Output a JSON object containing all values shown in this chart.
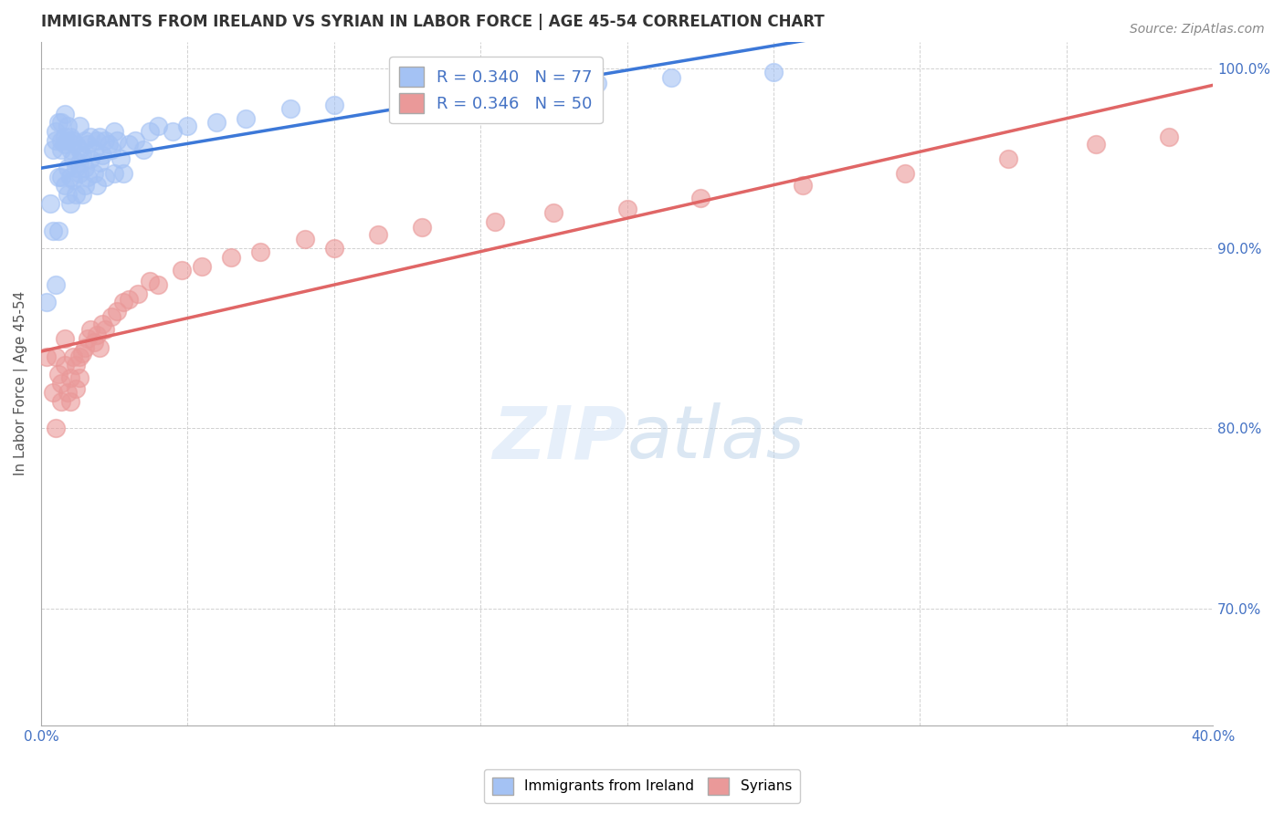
{
  "title": "IMMIGRANTS FROM IRELAND VS SYRIAN IN LABOR FORCE | AGE 45-54 CORRELATION CHART",
  "source": "Source: ZipAtlas.com",
  "xlabel": "",
  "ylabel": "In Labor Force | Age 45-54",
  "xlim": [
    0.0,
    0.4
  ],
  "ylim": [
    0.635,
    1.015
  ],
  "xtick_positions": [
    0.0,
    0.05,
    0.1,
    0.15,
    0.2,
    0.25,
    0.3,
    0.35,
    0.4
  ],
  "xticklabels": [
    "0.0%",
    "",
    "",
    "",
    "",
    "",
    "",
    "",
    "40.0%"
  ],
  "ytick_values": [
    0.7,
    0.8,
    0.9,
    1.0
  ],
  "ytick_labels": [
    "70.0%",
    "80.0%",
    "90.0%",
    "100.0%"
  ],
  "ireland_color": "#a4c2f4",
  "syrian_color": "#ea9999",
  "ireland_line_color": "#3c78d8",
  "syrian_line_color": "#e06666",
  "R_ireland": 0.34,
  "N_ireland": 77,
  "R_syrian": 0.346,
  "N_syrian": 50,
  "legend_label_ireland": "Immigrants from Ireland",
  "legend_label_syrian": "Syrians",
  "title_fontsize": 12,
  "axis_label_fontsize": 11,
  "tick_fontsize": 11,
  "legend_fontsize": 13,
  "ireland_points_x": [
    0.002,
    0.003,
    0.004,
    0.004,
    0.005,
    0.005,
    0.005,
    0.006,
    0.006,
    0.006,
    0.007,
    0.007,
    0.007,
    0.007,
    0.008,
    0.008,
    0.008,
    0.008,
    0.009,
    0.009,
    0.009,
    0.009,
    0.01,
    0.01,
    0.01,
    0.01,
    0.011,
    0.011,
    0.011,
    0.012,
    0.012,
    0.012,
    0.013,
    0.013,
    0.013,
    0.013,
    0.014,
    0.014,
    0.015,
    0.015,
    0.015,
    0.016,
    0.016,
    0.017,
    0.017,
    0.018,
    0.018,
    0.019,
    0.019,
    0.02,
    0.02,
    0.021,
    0.022,
    0.022,
    0.023,
    0.024,
    0.025,
    0.025,
    0.026,
    0.027,
    0.028,
    0.03,
    0.032,
    0.035,
    0.037,
    0.04,
    0.045,
    0.05,
    0.06,
    0.07,
    0.085,
    0.1,
    0.125,
    0.155,
    0.19,
    0.215,
    0.25
  ],
  "ireland_points_y": [
    0.87,
    0.925,
    0.955,
    0.91,
    0.965,
    0.96,
    0.88,
    0.94,
    0.91,
    0.97,
    0.96,
    0.955,
    0.94,
    0.97,
    0.958,
    0.962,
    0.935,
    0.975,
    0.96,
    0.945,
    0.93,
    0.968,
    0.955,
    0.94,
    0.962,
    0.925,
    0.95,
    0.938,
    0.96,
    0.945,
    0.958,
    0.93,
    0.948,
    0.955,
    0.942,
    0.968,
    0.952,
    0.93,
    0.945,
    0.96,
    0.935,
    0.958,
    0.94,
    0.95,
    0.962,
    0.955,
    0.942,
    0.96,
    0.935,
    0.962,
    0.948,
    0.952,
    0.94,
    0.96,
    0.958,
    0.955,
    0.942,
    0.965,
    0.96,
    0.95,
    0.942,
    0.958,
    0.96,
    0.955,
    0.965,
    0.968,
    0.965,
    0.968,
    0.97,
    0.972,
    0.978,
    0.98,
    0.985,
    0.988,
    0.992,
    0.995,
    0.998
  ],
  "syrian_points_x": [
    0.002,
    0.004,
    0.005,
    0.005,
    0.006,
    0.007,
    0.007,
    0.008,
    0.008,
    0.009,
    0.01,
    0.01,
    0.011,
    0.012,
    0.012,
    0.013,
    0.013,
    0.014,
    0.015,
    0.016,
    0.017,
    0.018,
    0.019,
    0.02,
    0.021,
    0.022,
    0.024,
    0.026,
    0.028,
    0.03,
    0.033,
    0.037,
    0.04,
    0.048,
    0.055,
    0.065,
    0.075,
    0.09,
    0.1,
    0.115,
    0.13,
    0.155,
    0.175,
    0.2,
    0.225,
    0.26,
    0.295,
    0.33,
    0.36,
    0.385
  ],
  "syrian_points_y": [
    0.84,
    0.82,
    0.84,
    0.8,
    0.83,
    0.825,
    0.815,
    0.835,
    0.85,
    0.82,
    0.828,
    0.815,
    0.84,
    0.835,
    0.822,
    0.84,
    0.828,
    0.842,
    0.845,
    0.85,
    0.855,
    0.848,
    0.852,
    0.845,
    0.858,
    0.855,
    0.862,
    0.865,
    0.87,
    0.872,
    0.875,
    0.882,
    0.88,
    0.888,
    0.89,
    0.895,
    0.898,
    0.905,
    0.9,
    0.908,
    0.912,
    0.915,
    0.92,
    0.922,
    0.928,
    0.935,
    0.942,
    0.95,
    0.958,
    0.962
  ],
  "background_color": "#ffffff",
  "grid_color": "#cccccc"
}
